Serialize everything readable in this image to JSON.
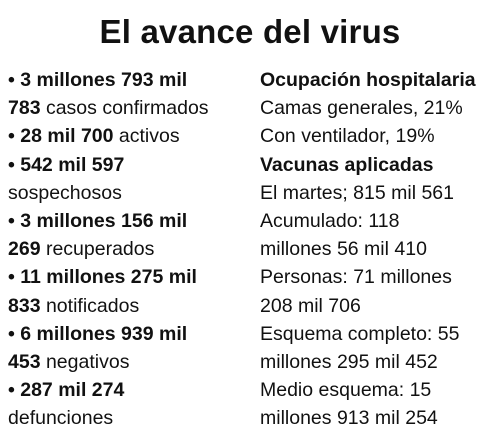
{
  "title": "El avance del virus",
  "left": [
    {
      "bold": "• 3 millones 793 mil",
      "text": ""
    },
    {
      "bold": "783",
      "text": " casos confirmados"
    },
    {
      "bold": "• 28 mil 700",
      "text": " activos"
    },
    {
      "bold": "• 542 mil 597",
      "text": ""
    },
    {
      "bold": "",
      "text": "sospechosos"
    },
    {
      "bold": "• 3 millones 156 mil",
      "text": ""
    },
    {
      "bold": "269",
      "text": " recuperados"
    },
    {
      "bold": "• 11 millones 275 mil",
      "text": ""
    },
    {
      "bold": "833",
      "text": " notificados"
    },
    {
      "bold": "• 6 millones 939 mil",
      "text": ""
    },
    {
      "bold": "453",
      "text": " negativos"
    },
    {
      "bold": "• 287 mil 274",
      "text": ""
    },
    {
      "bold": "",
      "text": "defunciones"
    }
  ],
  "right": {
    "hospital_heading": "Ocupación hospitalaria",
    "hospital_lines": [
      "Camas generales, 21%",
      "Con ventilador, 19%"
    ],
    "vaccines_heading": "Vacunas aplicadas",
    "vaccine_lines": [
      "El martes; 815 mil 561",
      "Acumulado: 118",
      "millones 56 mil 410",
      "Personas: 71 millones",
      "208 mil 706",
      "Esquema completo: 55",
      "millones 295 mil 452",
      "Medio esquema: 15",
      "millones 913 mil 254"
    ]
  }
}
